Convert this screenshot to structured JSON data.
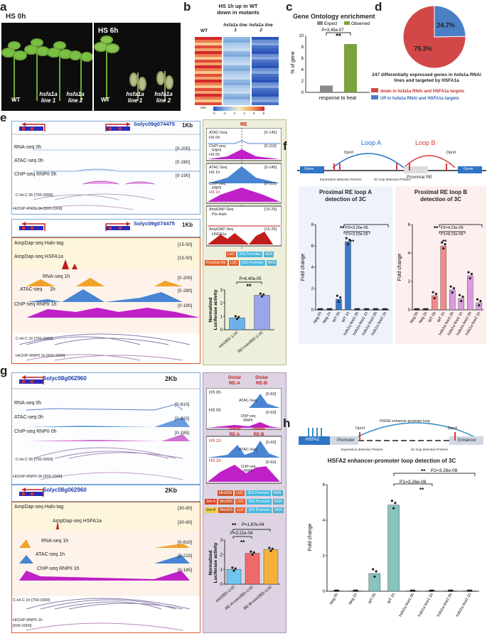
{
  "panels": {
    "a": "a",
    "b": "b",
    "c": "c",
    "d": "d",
    "e": "e",
    "f": "f",
    "g": "g",
    "h": "h"
  },
  "a": {
    "hs0": "HS 0h",
    "hs6": "HS 6h",
    "wt": "WT",
    "line1": "hsfa1a line 1",
    "line2": "hsfa1a line 2"
  },
  "b": {
    "title1": "HS 1h up in WT",
    "title2": "down in mutants",
    "cols": [
      "WT",
      "hsfa1a line 1",
      "hsfa1a line 2"
    ],
    "scale_label": "zso",
    "scale_ticks": [
      "0",
      "-2",
      "2",
      "4",
      "6",
      "8"
    ]
  },
  "c": {
    "title": "Gene Ontology enrichment",
    "legend": [
      "Expect",
      "Observed"
    ],
    "pvalue": "P=3.45e-07",
    "stars": "**",
    "ylabel": "% of gene",
    "xlabel": "response to heat",
    "colors": {
      "expect": "#8a8a8a",
      "observed": "#7ea13f"
    }
  },
  "chart_data": [
    {
      "type": "bar",
      "panel": "c",
      "title": "Gene Ontology enrichment",
      "categories": [
        "Expect",
        "Observed"
      ],
      "values": [
        1.2,
        8.5
      ],
      "xlabel": "response to heat",
      "ylabel": "% of gene",
      "ylim": [
        0,
        10
      ],
      "yticks": [
        "0",
        "2",
        "4",
        "6",
        "8",
        "10"
      ]
    },
    {
      "type": "pie",
      "panel": "d",
      "labels": [
        "down in hsfa1a RNAi and HSFA1a targets",
        "UP in hsfa1a RNAi and HSFA1a targets"
      ],
      "values": [
        75.3,
        24.7
      ],
      "value_labels": [
        "75.3%",
        "24.7%"
      ],
      "colors": [
        "#d24848",
        "#4a7fc4"
      ]
    },
    {
      "type": "bar",
      "panel": "e",
      "title": "Normalized Luciferase activity",
      "categories": [
        "mini35S::LUC",
        "RE+mini35S::LUC"
      ],
      "values": [
        0.9,
        2.6
      ],
      "ylim": [
        0,
        3
      ],
      "yticks": [
        "0",
        "1",
        "2",
        "3"
      ],
      "pvalue": "P=8.40e-05",
      "stars": "**"
    },
    {
      "type": "bar",
      "panel": "f",
      "title": "Proximal RE loop A detection of 3C",
      "ylabel": "Fold change",
      "categories": [
        "Neg 0h",
        "Neg 1h",
        "WT 0h",
        "WT 1h",
        "hsfa1a line1 0h",
        "hsfa1a line1 1h",
        "hsfa1a line2 0h",
        "hsfa1a line2 1h"
      ],
      "values": [
        0,
        0,
        1,
        6.4,
        0.05,
        0.05,
        0.05,
        0.05
      ],
      "ylim": [
        0,
        8
      ],
      "yticks": [
        "0",
        "2",
        "4",
        "6",
        "8"
      ],
      "p_labels": [
        "P2=3.20e-05",
        "P1=3.20e-05"
      ]
    },
    {
      "type": "bar",
      "panel": "f",
      "title": "Proximal RE loop B detection of 3C",
      "ylabel": "Fold change",
      "categories": [
        "Neg 0h",
        "Neg 1h",
        "WT 0h",
        "WT 1h",
        "hsfa1a line1 0h",
        "hsfa1a line1 1h",
        "hsfa1a line2 0h",
        "hsfa1a line2 1h"
      ],
      "values": [
        0,
        0,
        1,
        4.5,
        1.4,
        0.8,
        2.4,
        0.5
      ],
      "ylim": [
        0,
        6
      ],
      "yticks": [
        "0",
        "2",
        "4",
        "6"
      ],
      "p_labels": [
        "P2=4.23e-05",
        "P1=8.15e-05"
      ]
    },
    {
      "type": "bar",
      "panel": "g",
      "title": "Normalized Luciferase activity",
      "categories": [
        "mini35S::LUC",
        "RE-A+mini35S::LUC",
        "RE-B+mini35S::LUC"
      ],
      "values": [
        1.0,
        2.1,
        2.35
      ],
      "ylim": [
        0,
        3
      ],
      "yticks": [
        "0",
        "1",
        "2",
        "3"
      ],
      "p_labels": [
        "P=1.87e-04",
        "P=3.21e-04"
      ]
    },
    {
      "type": "bar",
      "panel": "h",
      "title": "HSFA2 enhancer-promoter loop detection of 3C",
      "ylabel": "Fold change",
      "categories": [
        "Neg 0h",
        "Neg 1h",
        "WT 0h",
        "WT 1h",
        "hsfa1a line1 0h",
        "hsfa1a line1 1h",
        "hsfa1a line2 0h",
        "hsfa1a line2 1h"
      ],
      "values": [
        0,
        0,
        1,
        4.85,
        0,
        0,
        0,
        0
      ],
      "ylim": [
        0,
        6
      ],
      "yticks": [
        "0",
        "2",
        "4",
        "6"
      ],
      "p_labels": [
        "P2=3.26e-08",
        "P1=3.26e-08"
      ]
    }
  ],
  "d": {
    "caption1": "247 differentially expressed genes in hsfa1a RNAi",
    "caption2": "lines and targeted by HSFA1a"
  },
  "e": {
    "gene": "Solyc09g074475",
    "scale": "1Kb",
    "top_tracks": [
      {
        "name": "RNA-seq 0h",
        "range": "[0-200]"
      },
      {
        "name": "ATAC-seq 0h",
        "range": "[0-280]"
      },
      {
        "name": "ChIP-seq RNPII 0h",
        "range": "[0-190]"
      },
      {
        "name": "C-Hi-C 0h [700-3000]",
        "range": ""
      },
      {
        "name": "HiChIP-RNPII 0h [500-2000]",
        "range": ""
      }
    ],
    "bottom_tracks": [
      {
        "name": "AmpDap-seq Halo-tag",
        "range": "[15-50]"
      },
      {
        "name": "AmpDap-seq HSFA1a",
        "range": "[15-50]"
      },
      {
        "name": "RNA-seq 1h",
        "range": "[0-200]"
      },
      {
        "name": "ATAC-seq",
        "sub": "1h",
        "range": "[0-280]"
      },
      {
        "name": "ChIP-seq RNPII 1h",
        "range": "[0-190]"
      },
      {
        "name": "C-Hi-C 1h [700-3000]",
        "range": ""
      },
      {
        "name": "HiChIP-RNPII 1h [500-2000]",
        "range": ""
      }
    ],
    "re_label": "RE",
    "zoom": [
      {
        "name": "ATAC-Seq",
        "sub": "HS 0h",
        "range": "[0-145]"
      },
      {
        "name": "ChIP-seq",
        "sub": "RNPII",
        "sub2": "HS 0h",
        "range": "[0-110]"
      },
      {
        "name": "ATAC-Seq",
        "sub": "HS 1h",
        "range": "[0-145]"
      },
      {
        "name": "ChIP-seq",
        "sub": "RNPII",
        "sub2": "HS 1h",
        "range": "[0-110]"
      },
      {
        "name": "AmpDAP-Seq",
        "sub": "Pix-Halo",
        "range": "[15-26]"
      },
      {
        "name": "AmpDAP-Seq",
        "sub": "HSFA1a",
        "range": "[15-26]"
      }
    ],
    "construct": {
      "luc": "LUC",
      "promoter": "35S Promoter",
      "ren": "REN",
      "re": "Proximal RE"
    }
  },
  "f": {
    "diagram": {
      "loopA": "Loop A",
      "loopB": "Loop B",
      "dpnII": "DpnII",
      "gene": "Gene",
      "proximal": "Proximal RE",
      "expr": "Expression detection Primers",
      "loopdet": "3C loop detection Primers"
    },
    "titleA": "Proximal RE loop A",
    "titleA2": "detection of 3C",
    "titleB": "Proximal RE loop B",
    "titleB2": "detection of 3C",
    "ylabel": "Fold change",
    "stars": "**"
  },
  "g": {
    "gene": "Solyc08g062960",
    "scale": "2Kb",
    "top_tracks": [
      {
        "name": "RNA-seq 0h",
        "range": "[0-610]"
      },
      {
        "name": "ATAC-seq 0h",
        "range": "[0-215]"
      },
      {
        "name": "ChIP-seq RNPII 0h",
        "range": "[0-185]"
      },
      {
        "name": "C-Hi-C 0h [700-3000]",
        "range": ""
      },
      {
        "name": "HiChIP-RNPII 0h [500-2000]",
        "range": ""
      }
    ],
    "bottom_tracks": [
      {
        "name": "AmpDap-seq Halo-tag",
        "range": "[30-80]"
      },
      {
        "name": "AmpDap-seq HSFA1a",
        "range": "[30-80]"
      },
      {
        "name": "RNA-seq 1h",
        "range": "[0-610]"
      },
      {
        "name": "ATAC-seq 1h",
        "range": "[0-215]"
      },
      {
        "name": "ChIP-seq RNPII 1h",
        "range": "[0-185]"
      },
      {
        "name": "C-Hi-C 1h [700-3000]",
        "range": ""
      },
      {
        "name": "HiChIP-RNPII 1h",
        "range": "[500-2000]"
      }
    ],
    "distal_a": "Distal RE-A",
    "distal_b": "Distal RE-B",
    "zoom": [
      {
        "label": "HS 0h",
        "name": "ATAC-Seq",
        "range": "[0-60]"
      },
      {
        "label": "HS 0h",
        "name": "ChIP-seq RNPII",
        "range": "[0-60]"
      },
      {
        "label": "HS 1h",
        "name": "ATAC-Seq",
        "range": "[0-60]"
      },
      {
        "label": "HS 1h",
        "name": "ChIP-seq RNPII",
        "range": "[0-60]"
      }
    ],
    "construct": {
      "site_a": "Site A",
      "site_b": "Site B",
      "mini": "Mini35S",
      "luc": "LUC",
      "promoter": "35S Promoter",
      "ren": "REN"
    }
  },
  "h": {
    "diagram": {
      "hsfa2": "HSFA2",
      "promoter": "Promoter",
      "enhancer": "Enhancer",
      "dpnII": "DpnII",
      "loop": "HSFA2 enhancer-promoter loop",
      "expr": "Expression detection Primers",
      "loopdet": "3C loop detection Primers"
    },
    "title": "HSFA2  enhancer-promoter loop detection of 3C",
    "ylabel": "Fold change",
    "stars": "**"
  }
}
